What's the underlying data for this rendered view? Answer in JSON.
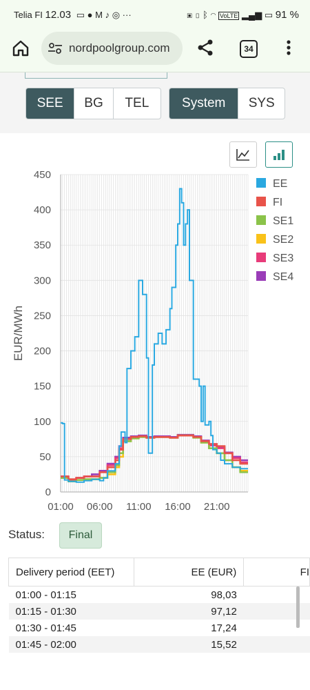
{
  "status_bar": {
    "carrier": "Telia FI",
    "time": "12.03",
    "battery": "91 %",
    "icons": [
      "message-icon",
      "facebook-icon",
      "gmail-icon",
      "tiktok-icon",
      "instagram-icon",
      "more-icon",
      "nfc-icon",
      "vibrate-icon",
      "bluetooth-icon",
      "wifi-icon",
      "volte-icon",
      "signal-icon",
      "battery-icon"
    ]
  },
  "browser": {
    "url": "nordpoolgroup.com",
    "tab_count": "34"
  },
  "area_buttons": [
    "SEE",
    "BG",
    "TEL"
  ],
  "area_selected": "SEE",
  "view_buttons": [
    "System",
    "SYS"
  ],
  "view_selected": "System",
  "chart_toggle": {
    "line_icon": "line-chart-icon",
    "bar_icon": "bar-chart-icon",
    "selected": "bar-chart-icon"
  },
  "chart_data": {
    "type": "line",
    "ylabel": "EUR/MWh",
    "ylim": [
      0,
      450
    ],
    "yticks": [
      0,
      50,
      100,
      150,
      200,
      250,
      300,
      350,
      400,
      450
    ],
    "xticks": [
      "01:00",
      "06:00",
      "11:00",
      "16:00",
      "21:00"
    ],
    "x_range_hours": [
      1,
      25
    ],
    "grid": true,
    "legend_position": "right",
    "series": [
      {
        "name": "EE",
        "color": "#2aa8e0",
        "points": [
          [
            1,
            98
          ],
          [
            1.25,
            97
          ],
          [
            1.5,
            17
          ],
          [
            2,
            15
          ],
          [
            3,
            14
          ],
          [
            4,
            16
          ],
          [
            5,
            18
          ],
          [
            6,
            16
          ],
          [
            6.5,
            20
          ],
          [
            7,
            30
          ],
          [
            8,
            40
          ],
          [
            8.5,
            65
          ],
          [
            8.75,
            85
          ],
          [
            9.25,
            70
          ],
          [
            9.5,
            175
          ],
          [
            10,
            200
          ],
          [
            10.5,
            220
          ],
          [
            11,
            300
          ],
          [
            11.5,
            280
          ],
          [
            12,
            190
          ],
          [
            12.25,
            55
          ],
          [
            12.75,
            180
          ],
          [
            13,
            210
          ],
          [
            13.5,
            225
          ],
          [
            14,
            210
          ],
          [
            14.5,
            230
          ],
          [
            15,
            260
          ],
          [
            15.25,
            290
          ],
          [
            15.75,
            350
          ],
          [
            16,
            380
          ],
          [
            16.25,
            430
          ],
          [
            16.5,
            410
          ],
          [
            16.75,
            350
          ],
          [
            17,
            380
          ],
          [
            17.25,
            400
          ],
          [
            17.5,
            300
          ],
          [
            18,
            160
          ],
          [
            18.5,
            160
          ],
          [
            18.75,
            150
          ],
          [
            19,
            100
          ],
          [
            19.25,
            150
          ],
          [
            19.5,
            95
          ],
          [
            20,
            100
          ],
          [
            20.25,
            80
          ],
          [
            20.5,
            60
          ],
          [
            21,
            55
          ],
          [
            21.5,
            45
          ],
          [
            22,
            40
          ],
          [
            23,
            35
          ],
          [
            24,
            33
          ]
        ]
      },
      {
        "name": "FI",
        "color": "#e8534a",
        "points": [
          [
            1,
            22
          ],
          [
            2,
            18
          ],
          [
            3,
            20
          ],
          [
            4,
            22
          ],
          [
            5,
            22
          ],
          [
            6,
            28
          ],
          [
            7,
            35
          ],
          [
            8,
            45
          ],
          [
            8.5,
            60
          ],
          [
            9,
            75
          ],
          [
            10,
            78
          ],
          [
            11,
            79
          ],
          [
            12,
            77
          ],
          [
            13,
            78
          ],
          [
            14,
            78
          ],
          [
            15,
            77
          ],
          [
            16,
            80
          ],
          [
            17,
            80
          ],
          [
            18,
            78
          ],
          [
            19,
            72
          ],
          [
            20,
            68
          ],
          [
            21,
            65
          ],
          [
            22,
            55
          ],
          [
            23,
            45
          ],
          [
            24,
            40
          ]
        ]
      },
      {
        "name": "SE1",
        "color": "#8bc34a",
        "points": [
          [
            1,
            20
          ],
          [
            2,
            15
          ],
          [
            3,
            17
          ],
          [
            4,
            18
          ],
          [
            5,
            18
          ],
          [
            6,
            20
          ],
          [
            7,
            28
          ],
          [
            8,
            38
          ],
          [
            8.5,
            55
          ],
          [
            9,
            72
          ],
          [
            10,
            76
          ],
          [
            11,
            78
          ],
          [
            12,
            77
          ],
          [
            13,
            78
          ],
          [
            14,
            78
          ],
          [
            15,
            77
          ],
          [
            16,
            80
          ],
          [
            17,
            80
          ],
          [
            18,
            77
          ],
          [
            19,
            70
          ],
          [
            20,
            62
          ],
          [
            21,
            55
          ],
          [
            22,
            45
          ],
          [
            23,
            35
          ],
          [
            24,
            28
          ]
        ]
      },
      {
        "name": "SE2",
        "color": "#f9c21a",
        "points": [
          [
            1,
            20
          ],
          [
            2,
            15
          ],
          [
            3,
            17
          ],
          [
            4,
            18
          ],
          [
            5,
            18
          ],
          [
            6,
            20
          ],
          [
            7,
            25
          ],
          [
            8,
            35
          ],
          [
            8.5,
            50
          ],
          [
            9,
            72
          ],
          [
            10,
            76
          ],
          [
            11,
            78
          ],
          [
            12,
            77
          ],
          [
            13,
            78
          ],
          [
            14,
            78
          ],
          [
            15,
            77
          ],
          [
            16,
            80
          ],
          [
            17,
            80
          ],
          [
            18,
            77
          ],
          [
            19,
            70
          ],
          [
            20,
            62
          ],
          [
            21,
            55
          ],
          [
            22,
            45
          ],
          [
            23,
            35
          ],
          [
            24,
            30
          ]
        ]
      },
      {
        "name": "SE3",
        "color": "#e83c7a",
        "points": [
          [
            1,
            22
          ],
          [
            2,
            16
          ],
          [
            3,
            20
          ],
          [
            4,
            22
          ],
          [
            5,
            22
          ],
          [
            6,
            28
          ],
          [
            7,
            38
          ],
          [
            8,
            48
          ],
          [
            8.5,
            62
          ],
          [
            9,
            75
          ],
          [
            10,
            78
          ],
          [
            11,
            79
          ],
          [
            12,
            77
          ],
          [
            13,
            78
          ],
          [
            14,
            78
          ],
          [
            15,
            77
          ],
          [
            16,
            80
          ],
          [
            17,
            80
          ],
          [
            18,
            78
          ],
          [
            19,
            72
          ],
          [
            20,
            66
          ],
          [
            21,
            62
          ],
          [
            22,
            55
          ],
          [
            23,
            48
          ],
          [
            24,
            42
          ]
        ]
      },
      {
        "name": "SE4",
        "color": "#9a3db8",
        "points": [
          [
            1,
            22
          ],
          [
            2,
            16
          ],
          [
            3,
            20
          ],
          [
            4,
            22
          ],
          [
            5,
            25
          ],
          [
            6,
            30
          ],
          [
            7,
            40
          ],
          [
            8,
            50
          ],
          [
            8.5,
            65
          ],
          [
            9,
            77
          ],
          [
            10,
            79
          ],
          [
            11,
            80
          ],
          [
            12,
            78
          ],
          [
            13,
            79
          ],
          [
            14,
            79
          ],
          [
            15,
            78
          ],
          [
            16,
            81
          ],
          [
            17,
            81
          ],
          [
            18,
            79
          ],
          [
            19,
            73
          ],
          [
            20,
            68
          ],
          [
            21,
            64
          ],
          [
            22,
            56
          ],
          [
            23,
            50
          ],
          [
            24,
            45
          ]
        ]
      }
    ]
  },
  "status": {
    "label": "Status:",
    "value": "Final"
  },
  "table": {
    "headers": [
      "Delivery period (EET)",
      "EE (EUR)",
      "FI"
    ],
    "rows": [
      [
        "01:00 - 01:15",
        "98,03"
      ],
      [
        "01:15 - 01:30",
        "97,12"
      ],
      [
        "01:30 - 01:45",
        "17,24"
      ],
      [
        "01:45 - 02:00",
        "15,52"
      ]
    ]
  }
}
